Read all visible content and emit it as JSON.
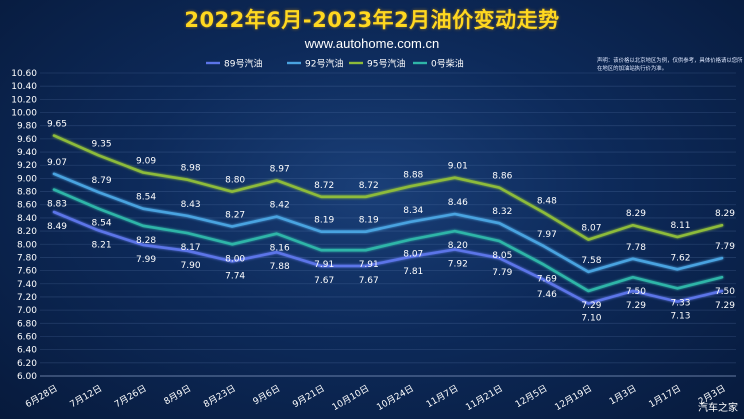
{
  "header": {
    "title": "2022年6月-2023年2月油价变动走势",
    "subtitle": "www.autohome.com.cn"
  },
  "note": {
    "text": "声明：该价格以北京地区为例，仅供参考，具体价格请以您所在地区的加油站执行价为准。"
  },
  "watermark": "汽车之家",
  "chart_data": {
    "type": "line",
    "title": "2022年6月-2023年2月油价变动走势",
    "xlabel": "",
    "ylabel": "",
    "x": [
      "6月28日",
      "7月12日",
      "7月26日",
      "8月9日",
      "8月23日",
      "9月6日",
      "9月21日",
      "10月10日",
      "10月24日",
      "11月7日",
      "11月21日",
      "12月5日",
      "12月19日",
      "1月3日",
      "1月17日",
      "2月3日"
    ],
    "ylim": [
      6.0,
      10.6
    ],
    "ytick_step": 0.2,
    "grid": true,
    "legend_position": "top",
    "series": [
      {
        "name": "89号汽油",
        "color": "#5b74e8",
        "values": [
          8.49,
          8.21,
          7.99,
          7.9,
          7.74,
          7.88,
          7.67,
          7.67,
          7.81,
          7.92,
          7.79,
          7.46,
          7.1,
          7.29,
          7.13,
          7.29
        ]
      },
      {
        "name": "92号汽油",
        "color": "#4aa3e0",
        "values": [
          9.07,
          8.79,
          8.54,
          8.43,
          8.27,
          8.42,
          8.19,
          8.19,
          8.34,
          8.46,
          8.32,
          7.97,
          7.58,
          7.78,
          7.62,
          7.79
        ]
      },
      {
        "name": "95号汽油",
        "color": "#8dbb3a",
        "values": [
          9.65,
          9.35,
          9.09,
          8.98,
          8.8,
          8.97,
          8.72,
          8.72,
          8.88,
          9.01,
          8.86,
          8.48,
          8.07,
          8.29,
          8.11,
          8.29
        ]
      },
      {
        "name": "0号柴油",
        "color": "#2fb5a8",
        "values": [
          8.83,
          8.54,
          8.28,
          8.17,
          8.0,
          8.16,
          7.91,
          7.91,
          8.07,
          8.2,
          8.05,
          7.69,
          7.29,
          7.5,
          7.33,
          7.5
        ]
      }
    ]
  }
}
